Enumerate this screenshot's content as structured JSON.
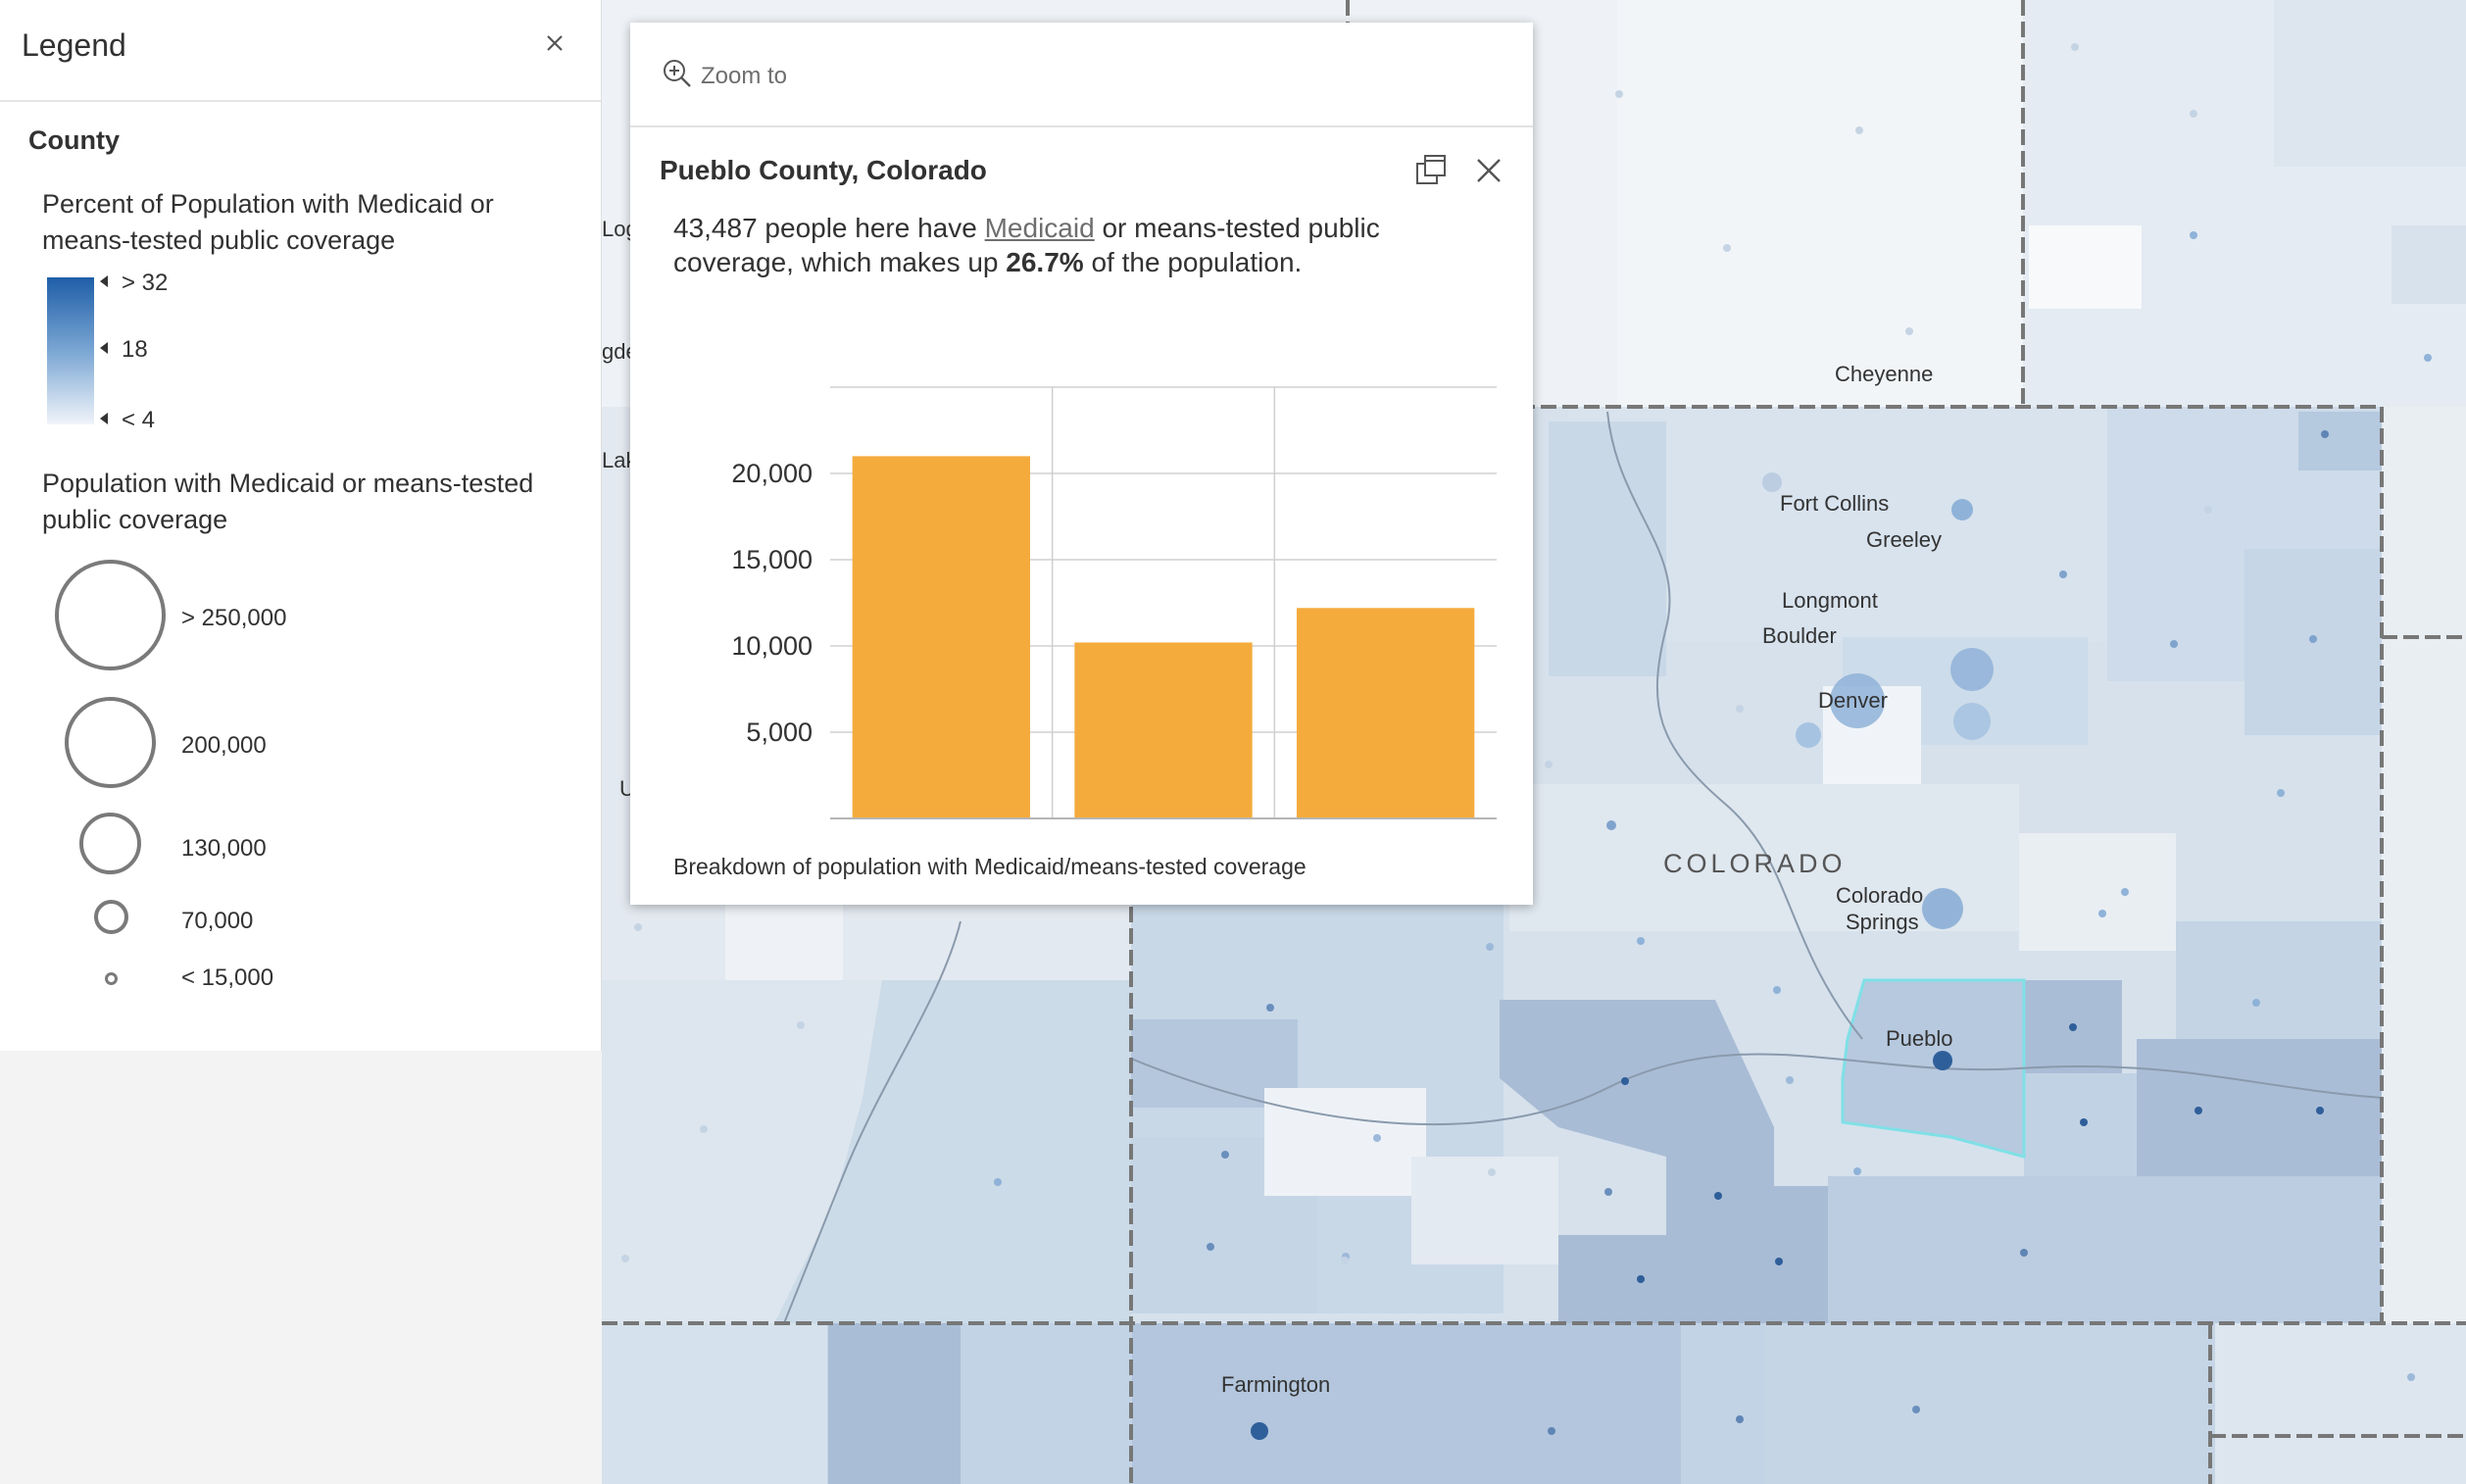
{
  "map": {
    "cities": [
      {
        "name": "Cheyenne"
      },
      {
        "name": "Fort Collins"
      },
      {
        "name": "Greeley"
      },
      {
        "name": "Longmont"
      },
      {
        "name": "Boulder"
      },
      {
        "name": "Denver"
      },
      {
        "name": "Colorado"
      },
      {
        "name": "Springs"
      },
      {
        "name": "Pueblo"
      },
      {
        "name": "Farmington"
      },
      {
        "name": "Log"
      },
      {
        "name": "gde"
      },
      {
        "name": "Lak"
      },
      {
        "name": "U"
      }
    ],
    "state_label": "COLORADO",
    "colors": {
      "lightest": "#eef2f7",
      "light": "#dbe5ef",
      "mid": "#c5d6e6",
      "dark": "#a9bdd6",
      "water": "#ffffff",
      "boundary": "#777777",
      "dot": "#2f5f9a",
      "selected_outline": "#7fe0e6"
    }
  },
  "legend": {
    "title": "Legend",
    "close_icon": "close-icon",
    "layer_title": "County",
    "color_title": "Percent of Population with Medicaid or means-tested public coverage",
    "color_title_line1": "Percent of Population with Medicaid or",
    "color_title_line2": "means-tested public coverage",
    "color_ramp": {
      "stops": [
        "> 32",
        "18",
        "< 4"
      ],
      "colors": [
        "#1f5ea8",
        "#7aa6d3",
        "#f1f4fa"
      ]
    },
    "size_title_line1": "Population with Medicaid or means-tested",
    "size_title_line2": "public coverage",
    "size_stops": [
      "> 250,000",
      "200,000",
      "130,000",
      "70,000",
      "< 15,000"
    ]
  },
  "popup": {
    "zoom_to": "Zoom to",
    "title": "Pueblo County, Colorado",
    "desc_count": "43,487",
    "desc_pre": " people here have ",
    "desc_link": "Medicaid",
    "desc_mid": " or means-tested public coverage, which makes up ",
    "desc_percent": "26.7%",
    "desc_post": " of the population.",
    "caption": "Breakdown of population with Medicaid/means-tested coverage"
  },
  "chart_data": {
    "type": "bar",
    "categories": [
      "",
      "",
      ""
    ],
    "values": [
      21000,
      10200,
      12200
    ],
    "ytick_labels": [
      "5,000",
      "10,000",
      "15,000",
      "20,000"
    ],
    "yticks": [
      5000,
      10000,
      15000,
      20000
    ],
    "ylim": [
      0,
      25000
    ],
    "color": "#f4ab3c",
    "grid": true,
    "xlabel": "",
    "ylabel": ""
  }
}
